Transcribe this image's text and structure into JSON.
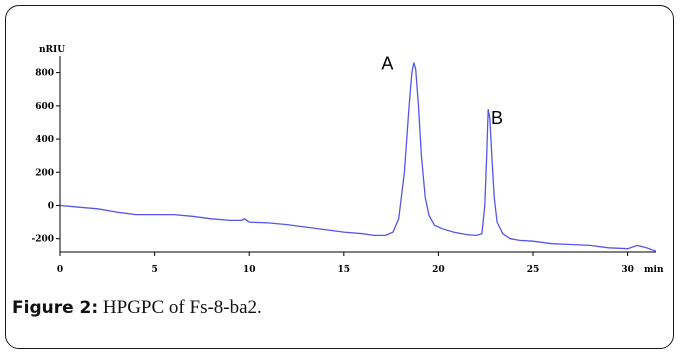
{
  "caption": {
    "figure_label": "Figure 2:",
    "text": "HPGPC of Fs-8-ba2."
  },
  "chart_data": {
    "type": "line",
    "title": "",
    "xlabel": "min",
    "ylabel": "nRIU",
    "xlim": [
      0,
      31.5
    ],
    "ylim": [
      -280,
      900
    ],
    "x_ticks": [
      0,
      5,
      10,
      15,
      20,
      25,
      30
    ],
    "y_ticks": [
      -200,
      0,
      200,
      400,
      600,
      800
    ],
    "grid": false,
    "annotations": [
      {
        "text": "A",
        "x": 17.3,
        "y": 820
      },
      {
        "text": "B",
        "x": 23.1,
        "y": 490
      }
    ],
    "series": [
      {
        "color": "#5555ee",
        "points": [
          [
            0,
            0
          ],
          [
            1,
            -10
          ],
          [
            2,
            -20
          ],
          [
            3,
            -40
          ],
          [
            4,
            -55
          ],
          [
            5,
            -55
          ],
          [
            6,
            -55
          ],
          [
            7,
            -65
          ],
          [
            8,
            -80
          ],
          [
            9,
            -90
          ],
          [
            9.6,
            -90
          ],
          [
            9.75,
            -80
          ],
          [
            9.9,
            -92
          ],
          [
            10,
            -100
          ],
          [
            11,
            -105
          ],
          [
            12,
            -115
          ],
          [
            13,
            -130
          ],
          [
            14,
            -145
          ],
          [
            15,
            -160
          ],
          [
            16,
            -170
          ],
          [
            16.6,
            -180
          ],
          [
            17.2,
            -180
          ],
          [
            17.6,
            -160
          ],
          [
            17.9,
            -80
          ],
          [
            18.2,
            200
          ],
          [
            18.45,
            600
          ],
          [
            18.6,
            800
          ],
          [
            18.7,
            860
          ],
          [
            18.8,
            820
          ],
          [
            18.95,
            600
          ],
          [
            19.1,
            300
          ],
          [
            19.3,
            50
          ],
          [
            19.5,
            -60
          ],
          [
            19.8,
            -120
          ],
          [
            20.2,
            -140
          ],
          [
            20.8,
            -160
          ],
          [
            21.5,
            -175
          ],
          [
            22.0,
            -180
          ],
          [
            22.3,
            -170
          ],
          [
            22.45,
            0
          ],
          [
            22.55,
            300
          ],
          [
            22.63,
            580
          ],
          [
            22.72,
            520
          ],
          [
            22.82,
            300
          ],
          [
            22.95,
            50
          ],
          [
            23.1,
            -100
          ],
          [
            23.4,
            -170
          ],
          [
            23.8,
            -200
          ],
          [
            24.3,
            -210
          ],
          [
            25,
            -215
          ],
          [
            26,
            -230
          ],
          [
            27,
            -235
          ],
          [
            28,
            -240
          ],
          [
            29,
            -255
          ],
          [
            30,
            -260
          ],
          [
            30.5,
            -240
          ],
          [
            31,
            -255
          ],
          [
            31.5,
            -275
          ]
        ]
      }
    ]
  }
}
